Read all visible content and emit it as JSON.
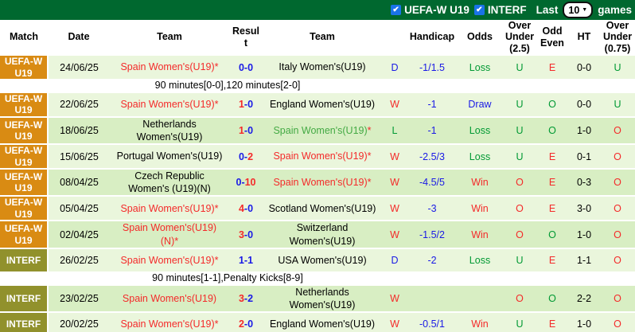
{
  "topbar": {
    "filters": [
      {
        "label": "UEFA-W U19",
        "checked": true
      },
      {
        "label": "INTERF",
        "checked": true
      }
    ],
    "last_label": "Last",
    "games_select": {
      "value": "10"
    },
    "games_label": "games"
  },
  "header": {
    "match": "Match",
    "date": "Date",
    "team1": "Team",
    "result": "Result",
    "team2": "Team",
    "letter": "",
    "handicap": "Handicap",
    "odds": "Odds",
    "ou25": "Over Under (2.5)",
    "oddeven": "Odd Even",
    "ht": "HT",
    "ou075": "Over Under (0.75)"
  },
  "colors": {
    "topbar_green": "#00682f",
    "uefa_badge_orange": "#d98b13",
    "interf_badge_olive": "#91912c",
    "row_light": "#eaf6dc",
    "row_dark": "#d8eec3",
    "win_red": "#f42a2a",
    "draw_blue": "#1a1ae6",
    "loss_green": "#009933",
    "spain_green": "#44aa44",
    "checkbox_blue": "#1a73e8"
  },
  "rows": [
    {
      "league": "UEFA-W U19",
      "league_type": "uefa",
      "date": "24/06/25",
      "home": {
        "name": "Spain Women's(U19)",
        "color": "red",
        "star": true
      },
      "score": {
        "home": "0",
        "away": "0",
        "home_win": false,
        "away_win": false
      },
      "away": {
        "name": "Italy Women's(U19)",
        "color": "black",
        "star": false
      },
      "letter": {
        "text": "D",
        "color": "blue"
      },
      "handicap": "-1/1.5",
      "odds": {
        "text": "Loss",
        "color": "green"
      },
      "ou25": {
        "text": "U",
        "color": "green"
      },
      "oddeven": {
        "text": "E",
        "color": "red"
      },
      "ht": "0-0",
      "ou075": {
        "text": "U",
        "color": "green"
      },
      "shade": "light",
      "note": "90 minutes[0-0],120 minutes[2-0]"
    },
    {
      "league": "UEFA-W U19",
      "league_type": "uefa",
      "date": "22/06/25",
      "home": {
        "name": "Spain Women's(U19)",
        "color": "red",
        "star": true
      },
      "score": {
        "home": "1",
        "away": "0",
        "home_win": true,
        "away_win": false
      },
      "away": {
        "name": "England Women's(U19)",
        "color": "black",
        "star": false
      },
      "letter": {
        "text": "W",
        "color": "red"
      },
      "handicap": "-1",
      "odds": {
        "text": "Draw",
        "color": "blue"
      },
      "ou25": {
        "text": "U",
        "color": "green"
      },
      "oddeven": {
        "text": "O",
        "color": "green"
      },
      "ht": "0-0",
      "ou075": {
        "text": "U",
        "color": "green"
      },
      "shade": "light",
      "note": ""
    },
    {
      "league": "UEFA-W U19",
      "league_type": "uefa",
      "date": "18/06/25",
      "home": {
        "name": "Netherlands Women's(U19)",
        "color": "black",
        "star": false
      },
      "score": {
        "home": "1",
        "away": "0",
        "home_win": true,
        "away_win": false
      },
      "away": {
        "name": "Spain Women's(U19)",
        "color": "green",
        "star": true
      },
      "letter": {
        "text": "L",
        "color": "green"
      },
      "handicap": "-1",
      "odds": {
        "text": "Loss",
        "color": "green"
      },
      "ou25": {
        "text": "U",
        "color": "green"
      },
      "oddeven": {
        "text": "O",
        "color": "green"
      },
      "ht": "1-0",
      "ou075": {
        "text": "O",
        "color": "red"
      },
      "shade": "dark",
      "note": ""
    },
    {
      "league": "UEFA-W U19",
      "league_type": "uefa",
      "date": "15/06/25",
      "home": {
        "name": "Portugal Women's(U19)",
        "color": "black",
        "star": false
      },
      "score": {
        "home": "0",
        "away": "2",
        "home_win": false,
        "away_win": true
      },
      "away": {
        "name": "Spain Women's(U19)",
        "color": "red",
        "star": true
      },
      "letter": {
        "text": "W",
        "color": "red"
      },
      "handicap": "-2.5/3",
      "odds": {
        "text": "Loss",
        "color": "green"
      },
      "ou25": {
        "text": "U",
        "color": "green"
      },
      "oddeven": {
        "text": "E",
        "color": "red"
      },
      "ht": "0-1",
      "ou075": {
        "text": "O",
        "color": "red"
      },
      "shade": "light",
      "note": ""
    },
    {
      "league": "UEFA-W U19",
      "league_type": "uefa",
      "date": "08/04/25",
      "home": {
        "name": "Czech Republic Women's (U19)(N)",
        "color": "black",
        "star": false
      },
      "score": {
        "home": "0",
        "away": "10",
        "home_win": false,
        "away_win": true
      },
      "away": {
        "name": "Spain Women's(U19)",
        "color": "red",
        "star": true
      },
      "letter": {
        "text": "W",
        "color": "red"
      },
      "handicap": "-4.5/5",
      "odds": {
        "text": "Win",
        "color": "red"
      },
      "ou25": {
        "text": "O",
        "color": "red"
      },
      "oddeven": {
        "text": "E",
        "color": "red"
      },
      "ht": "0-3",
      "ou075": {
        "text": "O",
        "color": "red"
      },
      "shade": "dark",
      "note": ""
    },
    {
      "league": "UEFA-W U19",
      "league_type": "uefa",
      "date": "05/04/25",
      "home": {
        "name": "Spain Women's(U19)",
        "color": "red",
        "star": true
      },
      "score": {
        "home": "4",
        "away": "0",
        "home_win": true,
        "away_win": false
      },
      "away": {
        "name": "Scotland Women's(U19)",
        "color": "black",
        "star": false
      },
      "letter": {
        "text": "W",
        "color": "red"
      },
      "handicap": "-3",
      "odds": {
        "text": "Win",
        "color": "red"
      },
      "ou25": {
        "text": "O",
        "color": "red"
      },
      "oddeven": {
        "text": "E",
        "color": "red"
      },
      "ht": "3-0",
      "ou075": {
        "text": "O",
        "color": "red"
      },
      "shade": "light",
      "note": ""
    },
    {
      "league": "UEFA-W U19",
      "league_type": "uefa",
      "date": "02/04/25",
      "home": {
        "name": "Spain Women's(U19)(N)",
        "color": "red",
        "star": true
      },
      "score": {
        "home": "3",
        "away": "0",
        "home_win": true,
        "away_win": false
      },
      "away": {
        "name": "Switzerland Women's(U19)",
        "color": "black",
        "star": false
      },
      "letter": {
        "text": "W",
        "color": "red"
      },
      "handicap": "-1.5/2",
      "odds": {
        "text": "Win",
        "color": "red"
      },
      "ou25": {
        "text": "O",
        "color": "red"
      },
      "oddeven": {
        "text": "O",
        "color": "green"
      },
      "ht": "1-0",
      "ou075": {
        "text": "O",
        "color": "red"
      },
      "shade": "dark",
      "note": ""
    },
    {
      "league": "INTERF",
      "league_type": "interf",
      "date": "26/02/25",
      "home": {
        "name": "Spain Women's(U19)",
        "color": "red",
        "star": true
      },
      "score": {
        "home": "1",
        "away": "1",
        "home_win": false,
        "away_win": false
      },
      "away": {
        "name": "USA Women's(U19)",
        "color": "black",
        "star": false
      },
      "letter": {
        "text": "D",
        "color": "blue"
      },
      "handicap": "-2",
      "odds": {
        "text": "Loss",
        "color": "green"
      },
      "ou25": {
        "text": "U",
        "color": "green"
      },
      "oddeven": {
        "text": "E",
        "color": "red"
      },
      "ht": "1-1",
      "ou075": {
        "text": "O",
        "color": "red"
      },
      "shade": "light",
      "note": "90 minutes[1-1],Penalty Kicks[8-9]"
    },
    {
      "league": "INTERF",
      "league_type": "interf",
      "date": "23/02/25",
      "home": {
        "name": "Spain Women's(U19)",
        "color": "red",
        "star": false
      },
      "score": {
        "home": "3",
        "away": "2",
        "home_win": true,
        "away_win": false
      },
      "away": {
        "name": "Netherlands Women's(U19)",
        "color": "black",
        "star": false
      },
      "letter": {
        "text": "W",
        "color": "red"
      },
      "handicap": "",
      "odds": {
        "text": "",
        "color": "black"
      },
      "ou25": {
        "text": "O",
        "color": "red"
      },
      "oddeven": {
        "text": "O",
        "color": "green"
      },
      "ht": "2-2",
      "ou075": {
        "text": "O",
        "color": "red"
      },
      "shade": "dark",
      "note": ""
    },
    {
      "league": "INTERF",
      "league_type": "interf",
      "date": "20/02/25",
      "home": {
        "name": "Spain Women's(U19)",
        "color": "red",
        "star": true
      },
      "score": {
        "home": "2",
        "away": "0",
        "home_win": true,
        "away_win": false
      },
      "away": {
        "name": "England Women's(U19)",
        "color": "black",
        "star": false
      },
      "letter": {
        "text": "W",
        "color": "red"
      },
      "handicap": "-0.5/1",
      "odds": {
        "text": "Win",
        "color": "red"
      },
      "ou25": {
        "text": "U",
        "color": "green"
      },
      "oddeven": {
        "text": "E",
        "color": "red"
      },
      "ht": "1-0",
      "ou075": {
        "text": "O",
        "color": "red"
      },
      "shade": "light",
      "note": ""
    }
  ]
}
